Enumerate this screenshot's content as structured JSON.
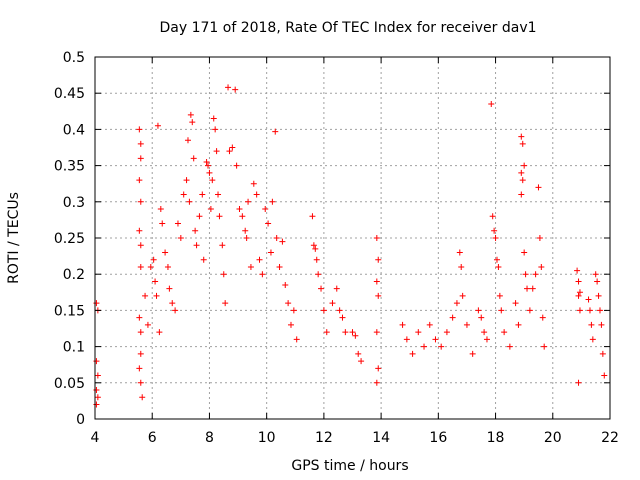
{
  "chart_data": {
    "type": "scatter",
    "title": "Day 171 of 2018, Rate Of TEC Index for receiver dav1",
    "xlabel": "GPS time / hours",
    "ylabel": "ROTI / TECUs",
    "xlim": [
      4,
      22
    ],
    "ylim": [
      0,
      0.5
    ],
    "xticks": [
      4,
      6,
      8,
      10,
      12,
      14,
      16,
      18,
      20,
      22
    ],
    "yticks": [
      0,
      0.05,
      0.1,
      0.15,
      0.2,
      0.25,
      0.3,
      0.35,
      0.4,
      0.45,
      0.5
    ],
    "ytick_labels": [
      "0",
      "0.05",
      "0.1",
      "0.15",
      "0.2",
      "0.25",
      "0.3",
      "0.35",
      "0.4",
      "0.45",
      "0.5"
    ],
    "grid": true,
    "marker": "+",
    "color": "#ff0000",
    "series": [
      {
        "points": [
          [
            4.05,
            0.16
          ],
          [
            4.1,
            0.15
          ],
          [
            4.05,
            0.08
          ],
          [
            4.1,
            0.06
          ],
          [
            4.05,
            0.04
          ],
          [
            4.1,
            0.03
          ],
          [
            4.05,
            0.02
          ],
          [
            5.55,
            0.4
          ],
          [
            5.6,
            0.38
          ],
          [
            5.6,
            0.36
          ],
          [
            5.55,
            0.33
          ],
          [
            5.6,
            0.3
          ],
          [
            5.55,
            0.26
          ],
          [
            5.6,
            0.24
          ],
          [
            5.6,
            0.21
          ],
          [
            5.55,
            0.14
          ],
          [
            5.6,
            0.12
          ],
          [
            5.6,
            0.09
          ],
          [
            5.55,
            0.07
          ],
          [
            5.6,
            0.05
          ],
          [
            5.65,
            0.03
          ],
          [
            5.75,
            0.17
          ],
          [
            5.85,
            0.13
          ],
          [
            5.95,
            0.21
          ],
          [
            6.05,
            0.22
          ],
          [
            6.1,
            0.19
          ],
          [
            6.15,
            0.17
          ],
          [
            6.2,
            0.405
          ],
          [
            6.25,
            0.12
          ],
          [
            6.3,
            0.29
          ],
          [
            6.35,
            0.27
          ],
          [
            6.45,
            0.23
          ],
          [
            6.55,
            0.21
          ],
          [
            6.6,
            0.18
          ],
          [
            6.7,
            0.16
          ],
          [
            6.8,
            0.15
          ],
          [
            6.9,
            0.27
          ],
          [
            7.0,
            0.25
          ],
          [
            7.1,
            0.31
          ],
          [
            7.2,
            0.33
          ],
          [
            7.25,
            0.385
          ],
          [
            7.3,
            0.3
          ],
          [
            7.35,
            0.42
          ],
          [
            7.4,
            0.41
          ],
          [
            7.45,
            0.36
          ],
          [
            7.5,
            0.26
          ],
          [
            7.55,
            0.24
          ],
          [
            7.65,
            0.28
          ],
          [
            7.75,
            0.31
          ],
          [
            7.8,
            0.22
          ],
          [
            7.9,
            0.355
          ],
          [
            7.95,
            0.35
          ],
          [
            8.0,
            0.34
          ],
          [
            8.05,
            0.29
          ],
          [
            8.1,
            0.33
          ],
          [
            8.15,
            0.415
          ],
          [
            8.2,
            0.4
          ],
          [
            8.25,
            0.37
          ],
          [
            8.3,
            0.31
          ],
          [
            8.35,
            0.28
          ],
          [
            8.45,
            0.24
          ],
          [
            8.5,
            0.2
          ],
          [
            8.55,
            0.16
          ],
          [
            8.65,
            0.458
          ],
          [
            8.7,
            0.37
          ],
          [
            8.8,
            0.375
          ],
          [
            8.9,
            0.455
          ],
          [
            8.95,
            0.35
          ],
          [
            9.05,
            0.29
          ],
          [
            9.15,
            0.28
          ],
          [
            9.25,
            0.26
          ],
          [
            9.3,
            0.25
          ],
          [
            9.35,
            0.3
          ],
          [
            9.45,
            0.21
          ],
          [
            9.55,
            0.325
          ],
          [
            9.65,
            0.31
          ],
          [
            9.75,
            0.22
          ],
          [
            9.85,
            0.2
          ],
          [
            9.95,
            0.29
          ],
          [
            10.05,
            0.27
          ],
          [
            10.15,
            0.23
          ],
          [
            10.2,
            0.3
          ],
          [
            10.3,
            0.397
          ],
          [
            10.35,
            0.25
          ],
          [
            10.45,
            0.21
          ],
          [
            10.55,
            0.245
          ],
          [
            10.65,
            0.185
          ],
          [
            10.75,
            0.16
          ],
          [
            10.85,
            0.13
          ],
          [
            10.95,
            0.15
          ],
          [
            11.05,
            0.11
          ],
          [
            11.6,
            0.28
          ],
          [
            11.65,
            0.24
          ],
          [
            11.7,
            0.235
          ],
          [
            11.75,
            0.22
          ],
          [
            11.8,
            0.2
          ],
          [
            11.9,
            0.18
          ],
          [
            12.0,
            0.15
          ],
          [
            12.1,
            0.12
          ],
          [
            12.3,
            0.16
          ],
          [
            12.45,
            0.18
          ],
          [
            12.55,
            0.15
          ],
          [
            12.65,
            0.14
          ],
          [
            12.75,
            0.12
          ],
          [
            13.0,
            0.12
          ],
          [
            13.1,
            0.115
          ],
          [
            13.2,
            0.09
          ],
          [
            13.3,
            0.08
          ],
          [
            13.85,
            0.25
          ],
          [
            13.9,
            0.22
          ],
          [
            13.85,
            0.19
          ],
          [
            13.9,
            0.17
          ],
          [
            13.85,
            0.12
          ],
          [
            13.9,
            0.07
          ],
          [
            13.85,
            0.05
          ],
          [
            14.75,
            0.13
          ],
          [
            14.9,
            0.11
          ],
          [
            15.1,
            0.09
          ],
          [
            15.3,
            0.12
          ],
          [
            15.5,
            0.1
          ],
          [
            15.7,
            0.13
          ],
          [
            15.9,
            0.11
          ],
          [
            16.1,
            0.1
          ],
          [
            16.3,
            0.12
          ],
          [
            16.5,
            0.14
          ],
          [
            16.65,
            0.16
          ],
          [
            16.75,
            0.23
          ],
          [
            16.8,
            0.21
          ],
          [
            16.85,
            0.17
          ],
          [
            17.0,
            0.13
          ],
          [
            17.2,
            0.09
          ],
          [
            17.4,
            0.15
          ],
          [
            17.5,
            0.14
          ],
          [
            17.6,
            0.12
          ],
          [
            17.7,
            0.11
          ],
          [
            17.85,
            0.435
          ],
          [
            17.9,
            0.28
          ],
          [
            17.95,
            0.26
          ],
          [
            18.0,
            0.25
          ],
          [
            18.05,
            0.22
          ],
          [
            18.1,
            0.21
          ],
          [
            18.15,
            0.17
          ],
          [
            18.2,
            0.15
          ],
          [
            18.3,
            0.12
          ],
          [
            18.5,
            0.1
          ],
          [
            18.7,
            0.16
          ],
          [
            18.8,
            0.13
          ],
          [
            18.9,
            0.39
          ],
          [
            18.95,
            0.38
          ],
          [
            19.0,
            0.35
          ],
          [
            18.9,
            0.34
          ],
          [
            18.95,
            0.33
          ],
          [
            18.9,
            0.31
          ],
          [
            19.0,
            0.23
          ],
          [
            19.05,
            0.2
          ],
          [
            19.1,
            0.18
          ],
          [
            19.2,
            0.15
          ],
          [
            19.3,
            0.18
          ],
          [
            19.4,
            0.2
          ],
          [
            19.5,
            0.32
          ],
          [
            19.55,
            0.25
          ],
          [
            19.6,
            0.21
          ],
          [
            19.65,
            0.14
          ],
          [
            19.7,
            0.1
          ],
          [
            20.85,
            0.205
          ],
          [
            20.9,
            0.19
          ],
          [
            20.95,
            0.175
          ],
          [
            20.9,
            0.17
          ],
          [
            20.95,
            0.15
          ],
          [
            20.9,
            0.05
          ],
          [
            21.25,
            0.165
          ],
          [
            21.3,
            0.15
          ],
          [
            21.35,
            0.13
          ],
          [
            21.4,
            0.11
          ],
          [
            21.5,
            0.2
          ],
          [
            21.55,
            0.19
          ],
          [
            21.6,
            0.17
          ],
          [
            21.65,
            0.15
          ],
          [
            21.7,
            0.13
          ],
          [
            21.75,
            0.09
          ],
          [
            21.8,
            0.06
          ]
        ]
      }
    ]
  }
}
